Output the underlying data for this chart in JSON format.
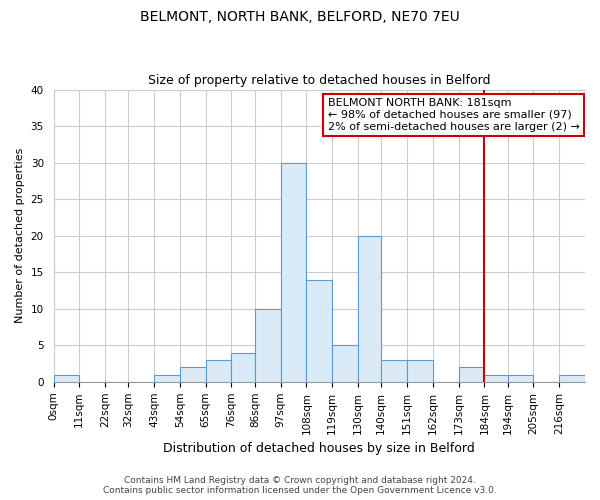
{
  "title": "BELMONT, NORTH BANK, BELFORD, NE70 7EU",
  "subtitle": "Size of property relative to detached houses in Belford",
  "xlabel": "Distribution of detached houses by size in Belford",
  "ylabel": "Number of detached properties",
  "footer_line1": "Contains HM Land Registry data © Crown copyright and database right 2024.",
  "footer_line2": "Contains public sector information licensed under the Open Government Licence v3.0.",
  "bin_labels": [
    "0sqm",
    "11sqm",
    "22sqm",
    "32sqm",
    "43sqm",
    "54sqm",
    "65sqm",
    "76sqm",
    "86sqm",
    "97sqm",
    "108sqm",
    "119sqm",
    "130sqm",
    "140sqm",
    "151sqm",
    "162sqm",
    "173sqm",
    "184sqm",
    "194sqm",
    "205sqm",
    "216sqm"
  ],
  "bar_heights": [
    1,
    0,
    0,
    0,
    1,
    2,
    3,
    4,
    10,
    30,
    14,
    5,
    20,
    3,
    3,
    0,
    2,
    1,
    1,
    0,
    1
  ],
  "bar_color": "#daeaf7",
  "bar_edge_color": "#5b9bd5",
  "vline_x": 184,
  "vline_color": "#cc0000",
  "annotation_box_text_line1": "BELMONT NORTH BANK: 181sqm",
  "annotation_box_text_line2": "← 98% of detached houses are smaller (97)",
  "annotation_box_text_line3": "2% of semi-detached houses are larger (2) →",
  "annotation_box_edge_color": "#cc0000",
  "ylim": [
    0,
    40
  ],
  "yticks": [
    0,
    5,
    10,
    15,
    20,
    25,
    30,
    35,
    40
  ],
  "bin_edges_sqm": [
    0,
    11,
    22,
    32,
    43,
    54,
    65,
    76,
    86,
    97,
    108,
    119,
    130,
    140,
    151,
    162,
    173,
    184,
    194,
    205,
    216,
    227
  ],
  "background_color": "#ffffff",
  "grid_color": "#cccccc",
  "title_fontsize": 10,
  "subtitle_fontsize": 9,
  "xlabel_fontsize": 9,
  "ylabel_fontsize": 8,
  "tick_fontsize": 7.5,
  "footer_fontsize": 6.5,
  "annot_fontsize": 8
}
